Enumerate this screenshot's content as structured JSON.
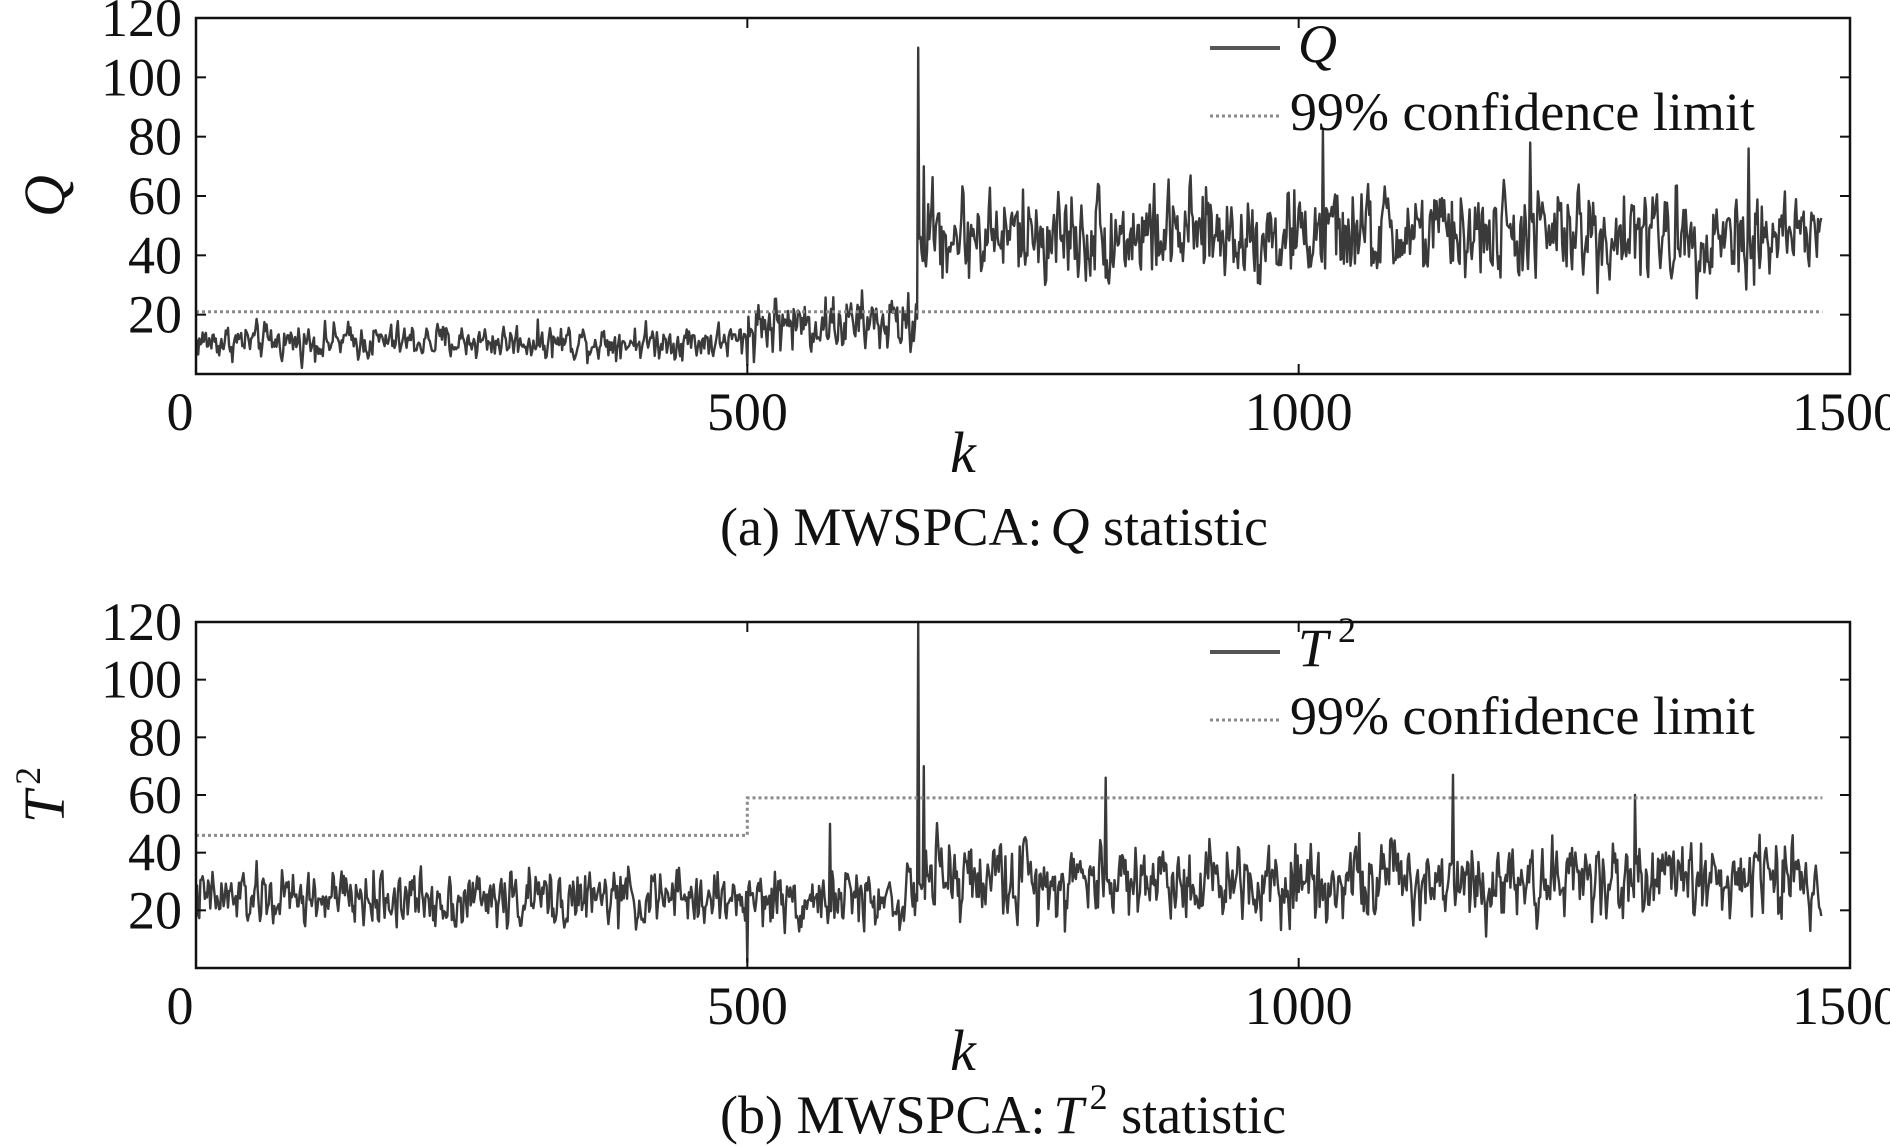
{
  "chart_data": [
    {
      "type": "line",
      "panel": "a",
      "caption_prefix": "(a) MWSPCA:",
      "caption_symbol": "Q",
      "caption_suffix": " statistic",
      "xlabel": "k",
      "ylabel": "Q",
      "xlim": [
        0,
        1500
      ],
      "ylim": [
        0,
        120
      ],
      "xticks": [
        0,
        500,
        1000,
        1500
      ],
      "xtick_labels": [
        "0",
        "500",
        "1000",
        "1500"
      ],
      "yticks": [
        20,
        40,
        60,
        80,
        100,
        120
      ],
      "ytick_labels": [
        "20",
        "40",
        "60",
        "80",
        "100",
        "120"
      ],
      "legend": {
        "placement": "top-right",
        "entries": [
          {
            "label": "Q",
            "italic": true,
            "style": "solid"
          },
          {
            "label": "99% confidence limit",
            "italic": false,
            "style": "dotted"
          }
        ]
      },
      "series": [
        {
          "name": "Q",
          "style": "solid",
          "color": "#3a3a3a",
          "n_samples": 1475,
          "segments": [
            {
              "from": 0,
              "to": 500,
              "mean": 11,
              "noise": 3
            },
            {
              "from": 500,
              "to": 655,
              "mean": 17,
              "noise": 5
            },
            {
              "from": 655,
              "to": 1475,
              "mean": 47,
              "noise": 8
            }
          ],
          "spikes": [
            {
              "k": 500,
              "value": 3
            },
            {
              "k": 655,
              "value": 110
            },
            {
              "k": 660,
              "value": 70
            },
            {
              "k": 1022,
              "value": 82
            },
            {
              "k": 1210,
              "value": 78
            },
            {
              "k": 1408,
              "value": 76
            }
          ]
        },
        {
          "name": "99% confidence limit",
          "style": "dotted",
          "color": "#8a8a8a",
          "points": [
            [
              0,
              21
            ],
            [
              1475,
              21
            ]
          ]
        }
      ]
    },
    {
      "type": "line",
      "panel": "b",
      "caption_prefix": "(b) MWSPCA:",
      "caption_symbol": "T",
      "caption_superscript": "2",
      "caption_suffix": " statistic",
      "xlabel": "k",
      "ylabel": "T",
      "ylabel_superscript": "2",
      "xlim": [
        0,
        1500
      ],
      "ylim": [
        0,
        120
      ],
      "xticks": [
        0,
        500,
        1000,
        1500
      ],
      "xtick_labels": [
        "0",
        "500",
        "1000",
        "1500"
      ],
      "yticks": [
        20,
        40,
        60,
        80,
        100,
        120
      ],
      "ytick_labels": [
        "20",
        "40",
        "60",
        "80",
        "100",
        "120"
      ],
      "legend": {
        "placement": "top-right",
        "entries": [
          {
            "label": "T",
            "superscript": "2",
            "italic": true,
            "style": "solid"
          },
          {
            "label": "99% confidence limit",
            "italic": false,
            "style": "dotted"
          }
        ]
      },
      "series": [
        {
          "name": "T2",
          "style": "solid",
          "color": "#3a3a3a",
          "n_samples": 1475,
          "segments": [
            {
              "from": 0,
              "to": 655,
              "mean": 24,
              "noise": 5
            },
            {
              "from": 655,
              "to": 1475,
              "mean": 31,
              "noise": 7
            }
          ],
          "spikes": [
            {
              "k": 500,
              "value": 2
            },
            {
              "k": 655,
              "value": 120
            },
            {
              "k": 660,
              "value": 70
            },
            {
              "k": 825,
              "value": 66
            },
            {
              "k": 1140,
              "value": 67
            },
            {
              "k": 1305,
              "value": 60
            },
            {
              "k": 575,
              "value": 50
            }
          ]
        },
        {
          "name": "99% confidence limit",
          "style": "dotted",
          "color": "#8a8a8a",
          "points": [
            [
              0,
              46
            ],
            [
              500,
              46
            ],
            [
              500,
              59
            ],
            [
              1475,
              59
            ]
          ]
        }
      ]
    }
  ]
}
